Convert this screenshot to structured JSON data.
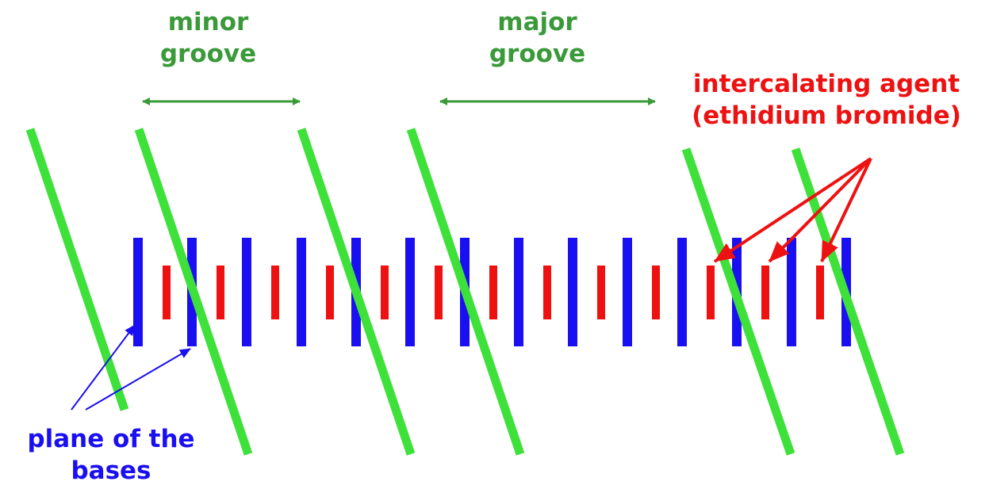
{
  "labels": {
    "minor_groove": [
      "minor",
      "groove"
    ],
    "major_groove": [
      "major",
      "groove"
    ],
    "intercalating_agent": [
      "intercalating agent",
      "(ethidium bromide)"
    ],
    "plane_of_bases": [
      "plane of the",
      "bases"
    ]
  },
  "colors": {
    "backbone": "#3ee03a",
    "base_pair": "#1a0ff0",
    "intercalator": "#ee1111",
    "groove_label": "#3a9a3a",
    "groove_arrow": "#3a9a3a",
    "plane_label": "#1a0ff0"
  }
}
